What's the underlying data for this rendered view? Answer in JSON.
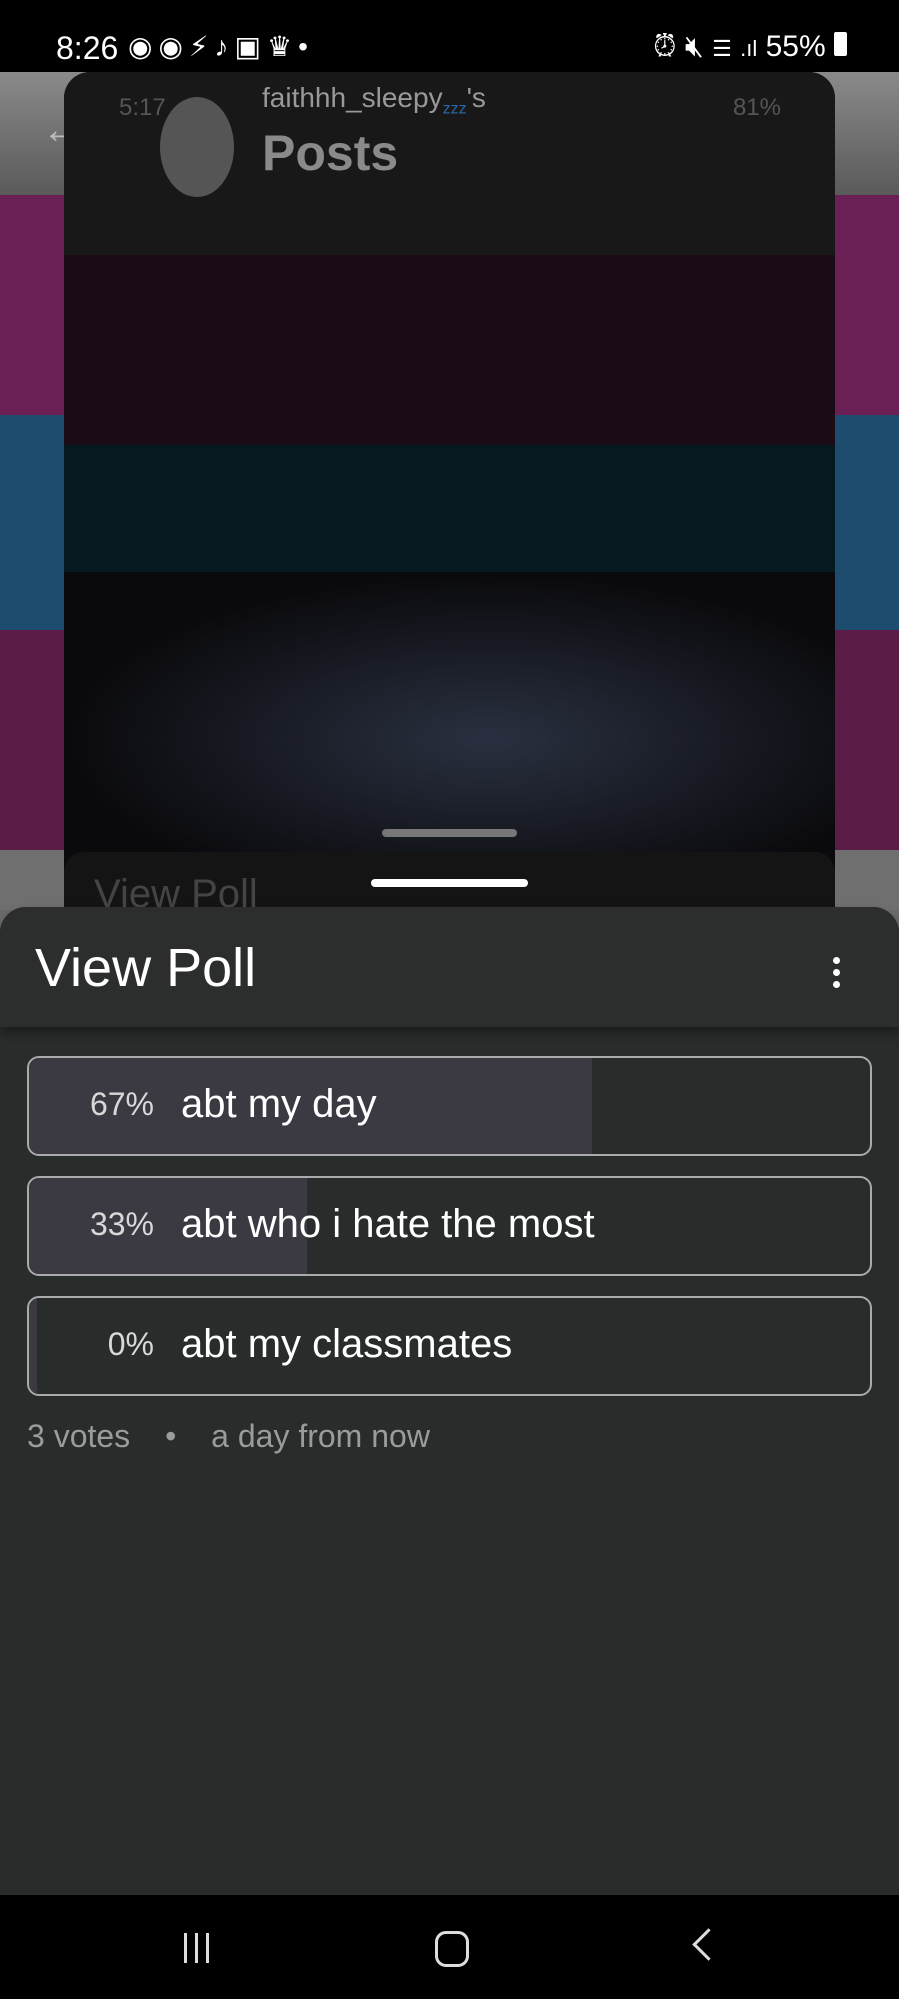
{
  "status_bar": {
    "time": "8:26",
    "battery": "55%",
    "notification_icons": [
      "discord-icon",
      "discord-icon",
      "bolt-icon",
      "tiktok-icon",
      "device-icon",
      "crown-icon",
      "dot-icon"
    ],
    "system_icons": [
      "alarm-icon",
      "mute-icon",
      "wifi-icon",
      "signal-icon",
      "battery-icon"
    ]
  },
  "background": {
    "ghost_time": "5:17",
    "ghost_battery": "81%",
    "ghost_username": "faithhh_sleepy",
    "ghost_zzz": "zzz",
    "ghost_suffix": "'s",
    "ghost_title": "Posts",
    "ghost_sheet_title": "View Poll",
    "colors": {
      "magenta": "#6a1f55",
      "blue": "#1e4c6e",
      "gray": "#777777"
    }
  },
  "poll": {
    "title": "View Poll",
    "options": [
      {
        "percent_label": "67%",
        "percent": 67,
        "label": "abt my day"
      },
      {
        "percent_label": "33%",
        "percent": 33,
        "label": "abt who i hate the most"
      },
      {
        "percent_label": "0%",
        "percent": 0,
        "label": "abt my classmates"
      }
    ],
    "votes": "3 votes",
    "separator": "•",
    "time_remaining": "a day from now",
    "fill_color": "#3b3a42"
  },
  "nav": {
    "recents": "recents-icon",
    "home": "home-icon",
    "back": "back-icon"
  }
}
